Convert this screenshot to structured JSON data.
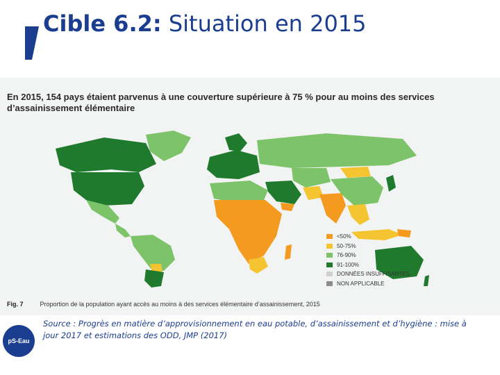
{
  "slide": {
    "title_bold": "Cible 6.2:",
    "title_rest": " Situation en 2015"
  },
  "figure": {
    "heading": "En 2015, 154 pays étaient parvenus à une couverture supérieure à 75 % pour au moins des services d’assainissement élémentaire",
    "fig_label": "Fig. 7",
    "caption": "Proportion de la population ayant accès au moins à des services élémentaire d’assainissement, 2015"
  },
  "legend": [
    {
      "label": "<50%",
      "color": "#f39a1f"
    },
    {
      "label": "50-75%",
      "color": "#f5c431"
    },
    {
      "label": "76-90%",
      "color": "#7cc36a"
    },
    {
      "label": "91-100%",
      "color": "#1f7a2e"
    },
    {
      "label": "DONNÉES INSUFFISANTES",
      "color": "#d0d0d0"
    },
    {
      "label": "NON APPLICABLE",
      "color": "#8c8c8c"
    }
  ],
  "source": "Source : Progrès en matière d’approvisionnement en eau potable, d’assainissement et d’hygiène : mise à jour 2017 et estimations des ODD, JMP (2017)",
  "logo": {
    "text": "pS-Eau"
  }
}
